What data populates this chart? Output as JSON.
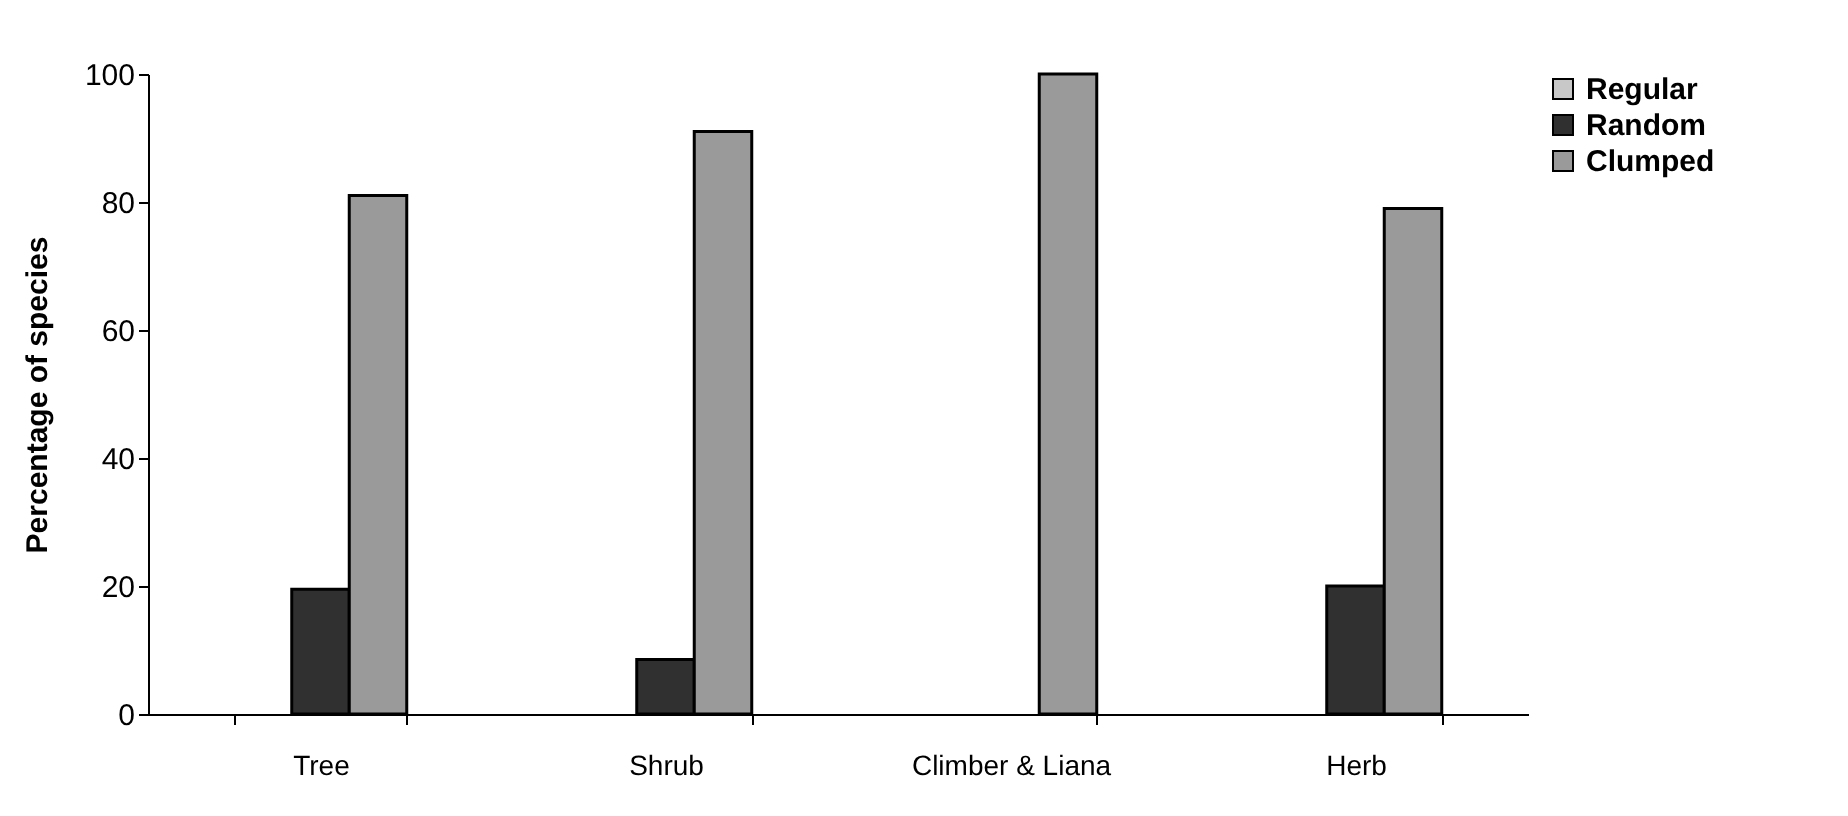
{
  "chart_data": {
    "type": "bar",
    "ylabel": "Percentage of species",
    "categories": [
      "Tree",
      "Shrub",
      "Climber & Liana",
      "Herb"
    ],
    "series": [
      {
        "name": "Regular",
        "color": "#c8c8c8",
        "values": [
          null,
          null,
          null,
          null
        ]
      },
      {
        "name": "Random",
        "color": "#303030",
        "values": [
          19.5,
          8.5,
          null,
          20
        ]
      },
      {
        "name": "Clumped",
        "color": "#9a9a9a",
        "values": [
          81,
          91,
          100,
          79
        ]
      }
    ],
    "ylim": [
      0,
      100
    ],
    "yticks": [
      0,
      20,
      40,
      60,
      80,
      100
    ],
    "grid": false,
    "legend": "top right"
  }
}
